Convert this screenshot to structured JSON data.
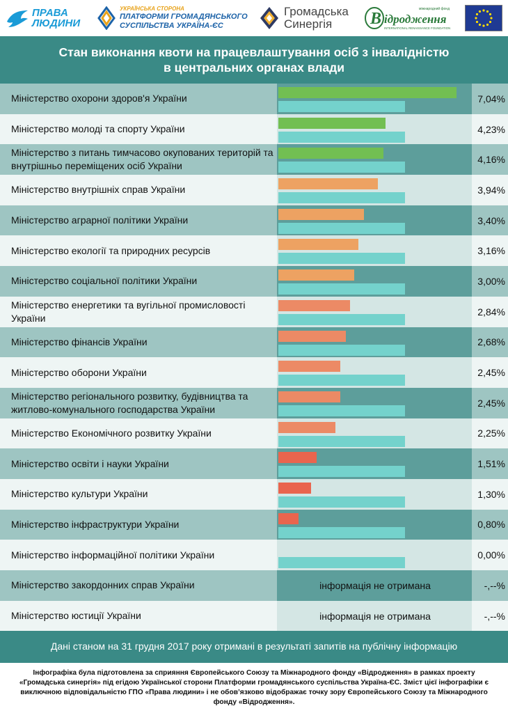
{
  "logos": {
    "prava": [
      "ПРАВА",
      "ЛЮДИНИ"
    ],
    "platform": [
      "УКРАЇНСЬКА СТОРОНА",
      "ПЛАТФОРМИ ГРОМАДЯНСЬКОГО",
      "СУСПІЛЬСТВА УКРАЇНА-ЄС"
    ],
    "synergy": [
      "Громадська",
      "Синергія"
    ],
    "irf_name": "Відродження",
    "irf_top": "міжнародний фонд",
    "irf_bottom": "INTERNATIONAL RENAISSANCE FOUNDATION"
  },
  "colors": {
    "header": "#3a8a86",
    "green": "#72bf52",
    "orange": "#eda262",
    "salmon": "#ec8a65",
    "red": "#e9654e",
    "reference": "#74d2cc"
  },
  "chart_data": {
    "type": "bar",
    "title": "Стан виконання квоти на працевлаштування осіб з інвалідністю в центральних органах влади",
    "title_lines": [
      "Стан виконання квоти на працевлаштування осіб з інвалідністю",
      "в центральних органах влади"
    ],
    "unit": "%",
    "xlim": [
      0,
      7.6
    ],
    "reference_value": 5,
    "no_data_label": "інформація не отримана",
    "rows": [
      {
        "name": "Міністерство охорони здоров'я України",
        "value": 7.04,
        "label": "7,04%",
        "color": "#72bf52"
      },
      {
        "name": "Міністерство молоді та спорту України",
        "value": 4.23,
        "label": "4,23%",
        "color": "#72bf52"
      },
      {
        "name": "Міністерство з питань тимчасово окупованих територій та внутрішньо переміщених осіб України",
        "value": 4.16,
        "label": "4,16%",
        "color": "#72bf52"
      },
      {
        "name": "Міністерство внутрішніх справ України",
        "value": 3.94,
        "label": "3,94%",
        "color": "#eda262"
      },
      {
        "name": "Міністерство аграрної політики України",
        "value": 3.4,
        "label": "3,40%",
        "color": "#eda262"
      },
      {
        "name": "Міністерство екології та природних ресурсів",
        "value": 3.16,
        "label": "3,16%",
        "color": "#eda262"
      },
      {
        "name": "Міністерство соціальної політики України",
        "value": 3.0,
        "label": "3,00%",
        "color": "#eda262"
      },
      {
        "name": "Міністерство енергетики та вугільної промисловості України",
        "value": 2.84,
        "label": "2,84%",
        "color": "#ec8a65"
      },
      {
        "name": "Міністерство фінансів України",
        "value": 2.68,
        "label": "2,68%",
        "color": "#ec8a65"
      },
      {
        "name": "Міністерство оборони України",
        "value": 2.45,
        "label": "2,45%",
        "color": "#ec8a65"
      },
      {
        "name": "Міністерство регіонального розвитку, будівництва та житлово-комунального господарства України",
        "value": 2.45,
        "label": "2,45%",
        "color": "#ec8a65"
      },
      {
        "name": "Міністерство Економічного розвитку України",
        "value": 2.25,
        "label": "2,25%",
        "color": "#ec8a65"
      },
      {
        "name": "Міністерство освіти і науки України",
        "value": 1.51,
        "label": "1,51%",
        "color": "#e9654e"
      },
      {
        "name": "Міністерство культури України",
        "value": 1.3,
        "label": "1,30%",
        "color": "#e9654e"
      },
      {
        "name": "Міністерство інфраструктури України",
        "value": 0.8,
        "label": "0,80%",
        "color": "#e9654e"
      },
      {
        "name": "Міністерство інформаційної політики України",
        "value": 0.0,
        "label": "0,00%",
        "color": "#e9654e"
      },
      {
        "name": "Міністерство закордонних справ України",
        "value": null,
        "label": "-,--%",
        "color": null
      },
      {
        "name": "Міністерство юстиції України",
        "value": null,
        "label": "-,--%",
        "color": null
      }
    ]
  },
  "footer": {
    "note": "Дані станом на 31 грудня 2017 року отримані в результаті запитів на публічну інформацію",
    "disclaimer": "Інфографіка була підготовлена за сприяння Європейського Союзу та Міжнародного фонду «Відродження» в рамках проекту «Громадська синергія» під егідою Української сторони Платформи громадянського суспільства Україна-ЄС. Зміст цієї інфографіки є виключною відповідальністю ГПО «Права людини» і не обов’язково відображає точку зору Європейського Союзу та Міжнародного фонду «Відродження»."
  }
}
